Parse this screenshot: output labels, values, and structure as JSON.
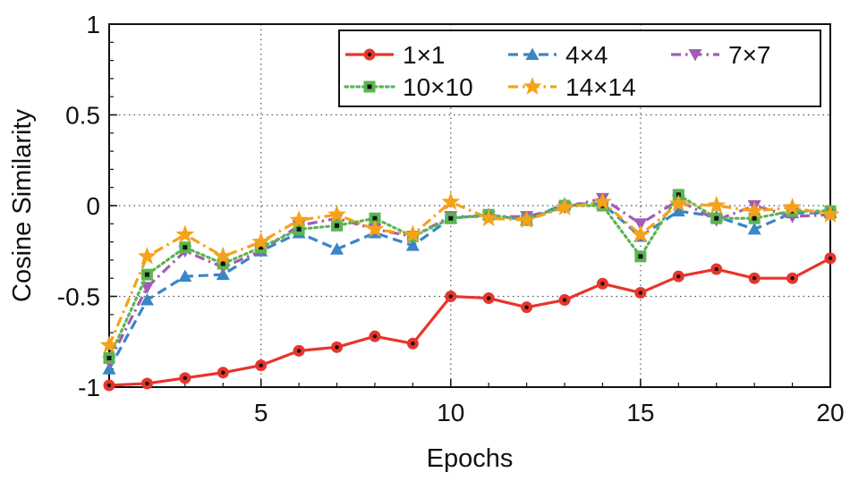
{
  "chart_data": {
    "type": "line",
    "xlabel": "Epochs",
    "ylabel": "Cosine Similarity",
    "xlim": [
      1,
      20
    ],
    "ylim": [
      -1,
      1
    ],
    "x_ticks": [
      5,
      10,
      15,
      20
    ],
    "y_ticks": [
      -1,
      -0.5,
      0,
      0.5,
      1
    ],
    "y_tick_labels": [
      "-1",
      "-0.5",
      "0",
      "0.5",
      "1"
    ],
    "grid": "dotted",
    "legend_position": "top-right",
    "x": [
      1,
      2,
      3,
      4,
      5,
      6,
      7,
      8,
      9,
      10,
      11,
      12,
      13,
      14,
      15,
      16,
      17,
      18,
      19,
      20
    ],
    "series": [
      {
        "name": "1×1",
        "color": "#e8352b",
        "dash": "solid",
        "marker": "circle",
        "values": [
          -0.99,
          -0.98,
          -0.95,
          -0.92,
          -0.88,
          -0.8,
          -0.78,
          -0.72,
          -0.76,
          -0.5,
          -0.51,
          -0.56,
          -0.52,
          -0.43,
          -0.48,
          -0.39,
          -0.35,
          -0.4,
          -0.4,
          -0.29
        ]
      },
      {
        "name": "4×4",
        "color": "#3a86c6",
        "dash": "dashed",
        "marker": "triangle",
        "values": [
          -0.9,
          -0.52,
          -0.39,
          -0.38,
          -0.25,
          -0.15,
          -0.24,
          -0.15,
          -0.22,
          -0.07,
          -0.05,
          -0.08,
          0.01,
          0.01,
          -0.17,
          -0.03,
          -0.06,
          -0.13,
          -0.04,
          -0.04
        ]
      },
      {
        "name": "7×7",
        "color": "#a15db5",
        "dash": "dashdot",
        "marker": "triangle-down",
        "values": [
          -0.86,
          -0.45,
          -0.25,
          -0.34,
          -0.25,
          -0.11,
          -0.07,
          -0.13,
          -0.17,
          -0.06,
          -0.06,
          -0.06,
          -0.01,
          0.04,
          -0.1,
          0.03,
          -0.08,
          0.0,
          -0.06,
          -0.05
        ]
      },
      {
        "name": "10×10",
        "color": "#5ab552",
        "dash": "dotted",
        "marker": "square",
        "values": [
          -0.84,
          -0.38,
          -0.23,
          -0.32,
          -0.23,
          -0.13,
          -0.11,
          -0.07,
          -0.17,
          -0.07,
          -0.05,
          -0.08,
          0.0,
          0.0,
          -0.28,
          0.06,
          -0.07,
          -0.07,
          -0.03,
          -0.03
        ]
      },
      {
        "name": "14×14",
        "color": "#f5a21a",
        "dash": "dashdot",
        "marker": "star",
        "values": [
          -0.77,
          -0.28,
          -0.16,
          -0.28,
          -0.2,
          -0.08,
          -0.05,
          -0.13,
          -0.16,
          0.02,
          -0.07,
          -0.08,
          -0.01,
          0.02,
          -0.16,
          0.01,
          0.0,
          -0.03,
          -0.01,
          -0.05
        ]
      }
    ]
  }
}
